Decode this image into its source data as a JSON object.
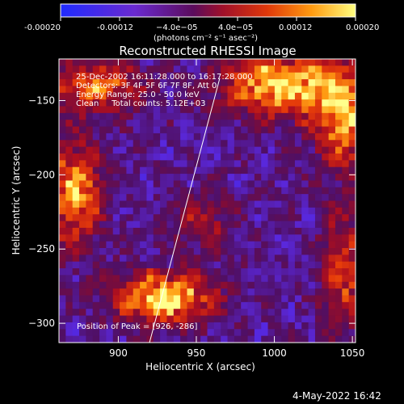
{
  "colorbar": {
    "ticks": [
      "-0.00020",
      "-0.00012",
      "−4.0e−05",
      "4.0e−05",
      "0.00012",
      "0.00020"
    ],
    "tick_values": [
      -0.0002,
      -0.00012,
      -4e-05,
      4e-05,
      0.00012,
      0.0002
    ],
    "units": "(photons cm⁻² s⁻¹ asec⁻²)",
    "range": [
      -0.0002,
      0.0002
    ]
  },
  "colors": {
    "low": "#1f2bff",
    "mid": "#b0157a",
    "high": "#ffff80",
    "background": "#000000"
  },
  "chart_data": {
    "type": "heatmap",
    "title": "Reconstructed RHESSI Image",
    "xlabel": "Heliocentric X (arcsec)",
    "ylabel": "Heliocentric Y (arcsec)",
    "xlim": [
      862,
      1052
    ],
    "ylim": [
      -313,
      -122
    ],
    "x_ticks": [
      900,
      950,
      1000,
      1050
    ],
    "y_ticks": [
      -150,
      -200,
      -250,
      -300
    ],
    "annotations": [
      "25-Dec-2002 16:11:28.000 to 16:17:28.000",
      "Detectors: 3F 4F 5F 6F 7F 8F, Att 0",
      "Energy Range: 25.0 - 50.0 keV",
      "Clean     Total counts: 5.12E+03"
    ],
    "peak_label": "Position of Peak = [926, -286]",
    "peak": [
      926,
      -286
    ],
    "limb_line": [
      [
        920,
        -313
      ],
      [
        965,
        -135
      ]
    ],
    "sources": [
      {
        "x": 930,
        "y": -283,
        "sx": 22,
        "sy": 12,
        "amp": 1.0
      },
      {
        "x": 1005,
        "y": -140,
        "sx": 28,
        "sy": 14,
        "amp": 0.95
      },
      {
        "x": 1045,
        "y": -165,
        "sx": 14,
        "sy": 22,
        "amp": 0.75
      },
      {
        "x": 885,
        "y": -140,
        "sx": 20,
        "sy": 12,
        "amp": 0.7
      },
      {
        "x": 872,
        "y": -212,
        "sx": 12,
        "sy": 25,
        "amp": 0.8
      },
      {
        "x": 1045,
        "y": -265,
        "sx": 10,
        "sy": 30,
        "amp": 0.55
      },
      {
        "x": 955,
        "y": -230,
        "sx": 14,
        "sy": 14,
        "amp": 0.35
      }
    ]
  },
  "footer": {
    "timestamp": "4-May-2022 16:42"
  }
}
